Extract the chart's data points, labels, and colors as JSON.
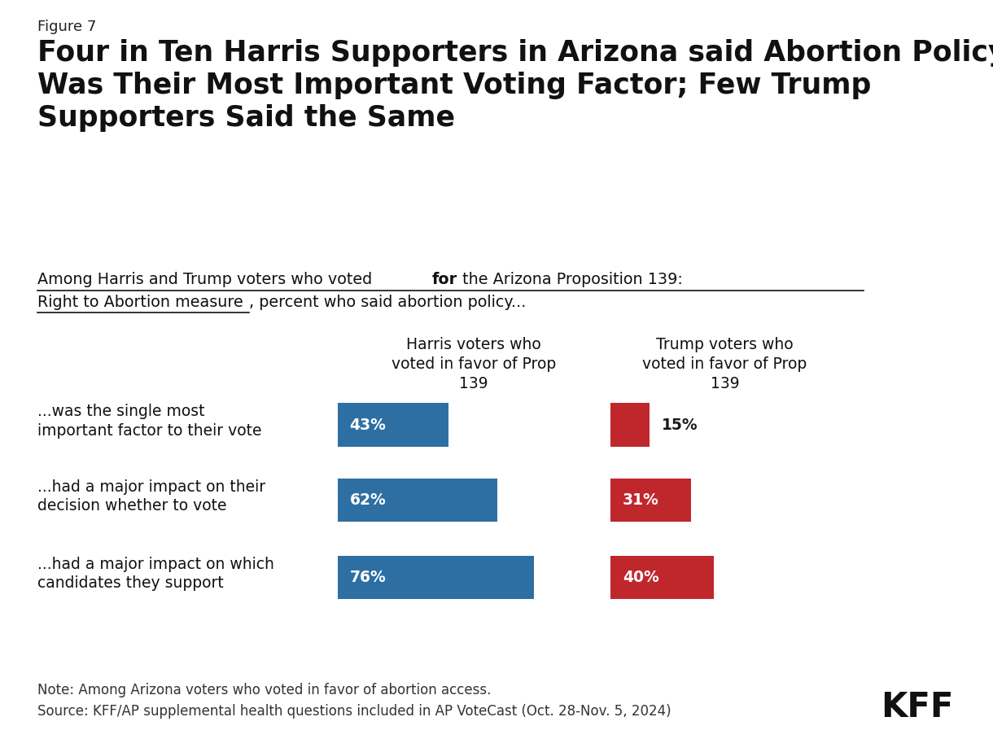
{
  "figure_label": "Figure 7",
  "title_line1": "Four in Ten Harris Supporters in Arizona said Abortion Policy",
  "title_line2": "Was Their Most Important Voting Factor; Few Trump",
  "title_line3": "Supporters Said the Same",
  "col_headers": [
    "Harris voters who\nvoted in favor of Prop\n139",
    "Trump voters who\nvoted in favor of Prop\n139"
  ],
  "row_labels": [
    "...was the single most\nimportant factor to their vote",
    "...had a major impact on their\ndecision whether to vote",
    "...had a major impact on which\ncandidates they support"
  ],
  "harris_values": [
    43,
    62,
    76
  ],
  "trump_values": [
    15,
    31,
    40
  ],
  "harris_color": "#2e6fa3",
  "trump_color": "#c0272d",
  "bar_text_color_white": "#ffffff",
  "bar_text_color_dark": "#1a1a1a",
  "background_color": "#ffffff",
  "note": "Note: Among Arizona voters who voted in favor of abortion access.",
  "source": "Source: KFF/AP supplemental health questions included in AP VoteCast (Oct. 28-Nov. 5, 2024)",
  "kff_label": "KFF",
  "max_value": 100,
  "trump_outside_threshold": 20
}
